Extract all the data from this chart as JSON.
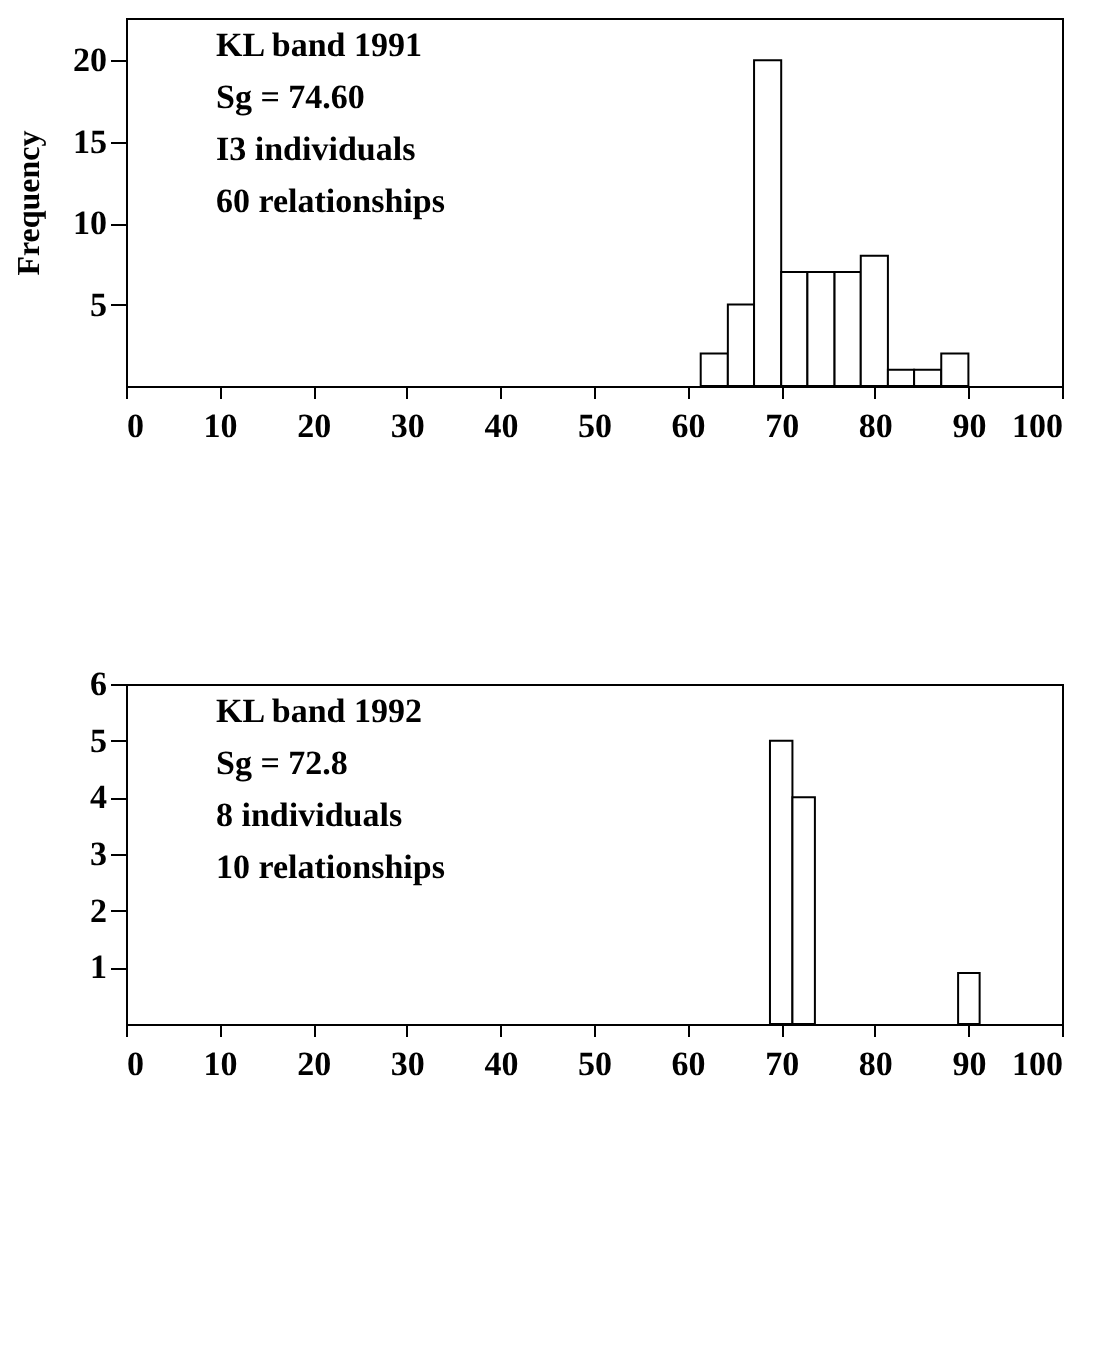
{
  "chart_data": [
    {
      "type": "histogram",
      "ylabel": "Frequency",
      "bins": [
        61.4,
        64.3,
        67.1,
        70.0,
        72.8,
        75.7,
        78.5,
        81.4,
        84.2,
        87.1,
        90.0
      ],
      "values": [
        2,
        5,
        20,
        7,
        7,
        7,
        8,
        1,
        1,
        2
      ],
      "color": "#ffffff",
      "xlim": [
        0,
        100
      ],
      "ylim": [
        0,
        22.6
      ],
      "xticks": [
        0,
        10,
        20,
        30,
        40,
        50,
        60,
        70,
        80,
        90,
        100
      ],
      "yticks": [
        5,
        10,
        15,
        20
      ],
      "grid": false,
      "annotations": [
        "KL band 1991",
        "Sg = 74.60",
        "I3 individuals",
        "60 relationships"
      ]
    },
    {
      "type": "histogram",
      "bins": [
        68.8,
        71.2,
        73.6,
        88.9,
        91.2
      ],
      "values": [
        5,
        4,
        null,
        0.9
      ],
      "color": "#ffffff",
      "xlim": [
        0,
        100
      ],
      "ylim": [
        0,
        6
      ],
      "xticks": [
        0,
        10,
        20,
        30,
        40,
        50,
        60,
        70,
        80,
        90,
        100
      ],
      "yticks": [
        1,
        2,
        3,
        4,
        5,
        6
      ],
      "grid": false,
      "annotations": [
        "KL band 1992",
        "Sg = 72.8",
        "8 individuals",
        "10 relationships"
      ]
    }
  ]
}
